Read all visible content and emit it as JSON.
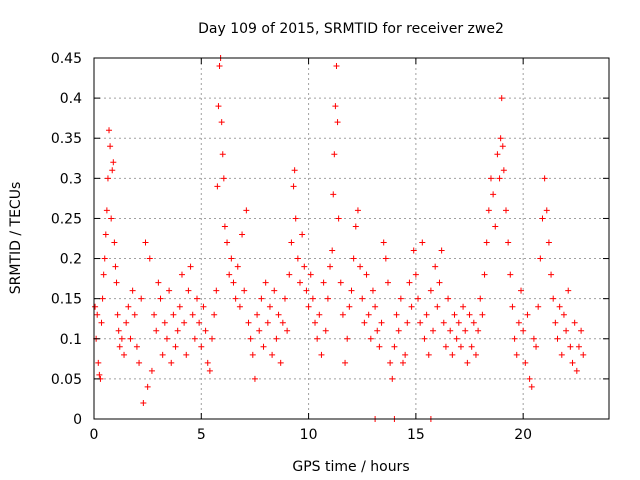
{
  "chart_data": {
    "type": "scatter",
    "title": "Day 109 of 2015, SRMTID for receiver zwe2",
    "xlabel": "GPS time / hours",
    "ylabel": "SRMTID / TECUs",
    "xlim": [
      0,
      24
    ],
    "ylim": [
      0,
      0.45
    ],
    "x_ticks": [
      0,
      5,
      10,
      15,
      20
    ],
    "x_tick_labels": [
      "0",
      "5",
      "10",
      "15",
      "20"
    ],
    "y_ticks": [
      0,
      0.05,
      0.1,
      0.15,
      0.2,
      0.25,
      0.3,
      0.35,
      0.4,
      0.45
    ],
    "y_tick_labels": [
      "0",
      "0.05",
      "0.1",
      "0.15",
      "0.2",
      "0.25",
      "0.3",
      "0.35",
      "0.4",
      "0.45"
    ],
    "grid": true,
    "marker": "plus",
    "series": [
      {
        "name": "SRMTID",
        "color": "#ff0000",
        "points": [
          [
            0.05,
            0.14
          ],
          [
            0.1,
            0.1
          ],
          [
            0.15,
            0.13
          ],
          [
            0.2,
            0.07
          ],
          [
            0.25,
            0.055
          ],
          [
            0.3,
            0.05
          ],
          [
            0.35,
            0.12
          ],
          [
            0.4,
            0.15
          ],
          [
            0.45,
            0.18
          ],
          [
            0.5,
            0.2
          ],
          [
            0.55,
            0.23
          ],
          [
            0.6,
            0.26
          ],
          [
            0.65,
            0.3
          ],
          [
            0.7,
            0.36
          ],
          [
            0.75,
            0.34
          ],
          [
            0.8,
            0.25
          ],
          [
            0.85,
            0.31
          ],
          [
            0.9,
            0.32
          ],
          [
            0.95,
            0.22
          ],
          [
            1.0,
            0.19
          ],
          [
            1.05,
            0.17
          ],
          [
            1.1,
            0.13
          ],
          [
            1.15,
            0.11
          ],
          [
            1.2,
            0.09
          ],
          [
            1.3,
            0.1
          ],
          [
            1.4,
            0.08
          ],
          [
            1.5,
            0.12
          ],
          [
            1.6,
            0.14
          ],
          [
            1.7,
            0.1
          ],
          [
            1.8,
            0.16
          ],
          [
            1.9,
            0.13
          ],
          [
            2.0,
            0.09
          ],
          [
            2.1,
            0.07
          ],
          [
            2.2,
            0.15
          ],
          [
            2.3,
            0.02
          ],
          [
            2.4,
            0.22
          ],
          [
            2.5,
            0.04
          ],
          [
            2.6,
            0.2
          ],
          [
            2.7,
            0.06
          ],
          [
            2.8,
            0.13
          ],
          [
            2.9,
            0.11
          ],
          [
            3.0,
            0.17
          ],
          [
            3.1,
            0.15
          ],
          [
            3.2,
            0.08
          ],
          [
            3.3,
            0.12
          ],
          [
            3.4,
            0.1
          ],
          [
            3.5,
            0.16
          ],
          [
            3.6,
            0.07
          ],
          [
            3.7,
            0.13
          ],
          [
            3.8,
            0.09
          ],
          [
            3.9,
            0.11
          ],
          [
            4.0,
            0.14
          ],
          [
            4.1,
            0.18
          ],
          [
            4.2,
            0.12
          ],
          [
            4.3,
            0.08
          ],
          [
            4.4,
            0.16
          ],
          [
            4.5,
            0.19
          ],
          [
            4.6,
            0.13
          ],
          [
            4.7,
            0.1
          ],
          [
            4.8,
            0.15
          ],
          [
            4.9,
            0.12
          ],
          [
            5.0,
            0.09
          ],
          [
            5.1,
            0.14
          ],
          [
            5.2,
            0.11
          ],
          [
            5.3,
            0.07
          ],
          [
            5.4,
            0.06
          ],
          [
            5.5,
            0.1
          ],
          [
            5.6,
            0.13
          ],
          [
            5.7,
            0.16
          ],
          [
            5.75,
            0.29
          ],
          [
            5.8,
            0.39
          ],
          [
            5.85,
            0.44
          ],
          [
            5.9,
            0.45
          ],
          [
            5.95,
            0.37
          ],
          [
            6.0,
            0.33
          ],
          [
            6.05,
            0.3
          ],
          [
            6.1,
            0.24
          ],
          [
            6.2,
            0.22
          ],
          [
            6.3,
            0.18
          ],
          [
            6.4,
            0.2
          ],
          [
            6.5,
            0.17
          ],
          [
            6.6,
            0.15
          ],
          [
            6.7,
            0.19
          ],
          [
            6.8,
            0.14
          ],
          [
            6.9,
            0.23
          ],
          [
            7.0,
            0.16
          ],
          [
            7.1,
            0.26
          ],
          [
            7.2,
            0.12
          ],
          [
            7.3,
            0.1
          ],
          [
            7.4,
            0.08
          ],
          [
            7.5,
            0.05
          ],
          [
            7.6,
            0.13
          ],
          [
            7.7,
            0.11
          ],
          [
            7.8,
            0.15
          ],
          [
            7.9,
            0.09
          ],
          [
            8.0,
            0.17
          ],
          [
            8.1,
            0.12
          ],
          [
            8.2,
            0.14
          ],
          [
            8.3,
            0.08
          ],
          [
            8.4,
            0.16
          ],
          [
            8.5,
            0.1
          ],
          [
            8.6,
            0.13
          ],
          [
            8.7,
            0.07
          ],
          [
            8.8,
            0.12
          ],
          [
            8.9,
            0.15
          ],
          [
            9.0,
            0.11
          ],
          [
            9.1,
            0.18
          ],
          [
            9.2,
            0.22
          ],
          [
            9.3,
            0.29
          ],
          [
            9.35,
            0.31
          ],
          [
            9.4,
            0.25
          ],
          [
            9.5,
            0.2
          ],
          [
            9.6,
            0.17
          ],
          [
            9.7,
            0.23
          ],
          [
            9.8,
            0.19
          ],
          [
            9.9,
            0.16
          ],
          [
            10.0,
            0.14
          ],
          [
            10.1,
            0.18
          ],
          [
            10.2,
            0.15
          ],
          [
            10.3,
            0.12
          ],
          [
            10.4,
            0.1
          ],
          [
            10.5,
            0.13
          ],
          [
            10.6,
            0.08
          ],
          [
            10.7,
            0.17
          ],
          [
            10.8,
            0.11
          ],
          [
            10.9,
            0.15
          ],
          [
            11.0,
            0.19
          ],
          [
            11.1,
            0.21
          ],
          [
            11.15,
            0.28
          ],
          [
            11.2,
            0.33
          ],
          [
            11.25,
            0.39
          ],
          [
            11.3,
            0.44
          ],
          [
            11.35,
            0.37
          ],
          [
            11.4,
            0.25
          ],
          [
            11.5,
            0.17
          ],
          [
            11.6,
            0.13
          ],
          [
            11.7,
            0.07
          ],
          [
            11.8,
            0.1
          ],
          [
            11.9,
            0.14
          ],
          [
            12.0,
            0.16
          ],
          [
            12.1,
            0.2
          ],
          [
            12.2,
            0.24
          ],
          [
            12.3,
            0.26
          ],
          [
            12.4,
            0.19
          ],
          [
            12.5,
            0.15
          ],
          [
            12.6,
            0.12
          ],
          [
            12.7,
            0.18
          ],
          [
            12.8,
            0.13
          ],
          [
            12.9,
            0.1
          ],
          [
            13.0,
            0.16
          ],
          [
            13.1,
            0.14
          ],
          [
            13.2,
            0.11
          ],
          [
            13.3,
            0.09
          ],
          [
            13.4,
            0.12
          ],
          [
            13.5,
            0.22
          ],
          [
            13.6,
            0.2
          ],
          [
            13.7,
            0.17
          ],
          [
            13.8,
            0.07
          ],
          [
            13.9,
            0.05
          ],
          [
            14.0,
            0.09
          ],
          [
            14.1,
            0.13
          ],
          [
            14.2,
            0.11
          ],
          [
            14.3,
            0.15
          ],
          [
            14.4,
            0.07
          ],
          [
            14.5,
            0.08
          ],
          [
            14.6,
            0.12
          ],
          [
            14.7,
            0.17
          ],
          [
            14.8,
            0.14
          ],
          [
            14.9,
            0.21
          ],
          [
            15.0,
            0.18
          ],
          [
            15.1,
            0.15
          ],
          [
            15.2,
            0.12
          ],
          [
            15.3,
            0.22
          ],
          [
            15.4,
            0.1
          ],
          [
            15.5,
            0.13
          ],
          [
            15.6,
            0.08
          ],
          [
            15.7,
            0.16
          ],
          [
            15.8,
            0.11
          ],
          [
            15.9,
            0.19
          ],
          [
            16.0,
            0.14
          ],
          [
            16.1,
            0.17
          ],
          [
            16.2,
            0.21
          ],
          [
            16.3,
            0.12
          ],
          [
            16.4,
            0.09
          ],
          [
            16.5,
            0.15
          ],
          [
            16.6,
            0.11
          ],
          [
            16.7,
            0.08
          ],
          [
            16.8,
            0.13
          ],
          [
            16.9,
            0.1
          ],
          [
            17.0,
            0.12
          ],
          [
            17.1,
            0.09
          ],
          [
            17.2,
            0.14
          ],
          [
            17.3,
            0.11
          ],
          [
            17.4,
            0.07
          ],
          [
            17.5,
            0.13
          ],
          [
            17.6,
            0.09
          ],
          [
            17.7,
            0.12
          ],
          [
            17.8,
            0.08
          ],
          [
            17.9,
            0.11
          ],
          [
            18.0,
            0.15
          ],
          [
            18.1,
            0.13
          ],
          [
            18.2,
            0.18
          ],
          [
            18.3,
            0.22
          ],
          [
            18.4,
            0.26
          ],
          [
            18.5,
            0.3
          ],
          [
            18.6,
            0.28
          ],
          [
            18.7,
            0.24
          ],
          [
            18.8,
            0.33
          ],
          [
            18.9,
            0.3
          ],
          [
            18.95,
            0.35
          ],
          [
            19.0,
            0.4
          ],
          [
            19.05,
            0.34
          ],
          [
            19.1,
            0.31
          ],
          [
            19.2,
            0.26
          ],
          [
            19.3,
            0.22
          ],
          [
            19.4,
            0.18
          ],
          [
            19.5,
            0.14
          ],
          [
            19.6,
            0.1
          ],
          [
            19.7,
            0.08
          ],
          [
            19.8,
            0.12
          ],
          [
            19.9,
            0.16
          ],
          [
            20.0,
            0.11
          ],
          [
            20.1,
            0.07
          ],
          [
            20.2,
            0.13
          ],
          [
            20.3,
            0.05
          ],
          [
            20.4,
            0.04
          ],
          [
            20.5,
            0.1
          ],
          [
            20.6,
            0.09
          ],
          [
            20.7,
            0.14
          ],
          [
            20.8,
            0.2
          ],
          [
            20.9,
            0.25
          ],
          [
            21.0,
            0.3
          ],
          [
            21.1,
            0.26
          ],
          [
            21.2,
            0.22
          ],
          [
            21.3,
            0.18
          ],
          [
            21.4,
            0.15
          ],
          [
            21.5,
            0.12
          ],
          [
            21.6,
            0.1
          ],
          [
            21.7,
            0.14
          ],
          [
            21.8,
            0.08
          ],
          [
            21.9,
            0.13
          ],
          [
            22.0,
            0.11
          ],
          [
            22.1,
            0.16
          ],
          [
            22.2,
            0.09
          ],
          [
            22.3,
            0.07
          ],
          [
            22.4,
            0.12
          ],
          [
            22.5,
            0.06
          ],
          [
            22.6,
            0.09
          ],
          [
            22.7,
            0.11
          ],
          [
            22.8,
            0.08
          ],
          [
            13.1,
            0.0
          ],
          [
            14.0,
            0.0
          ],
          [
            15.7,
            0.0
          ]
        ]
      }
    ]
  }
}
